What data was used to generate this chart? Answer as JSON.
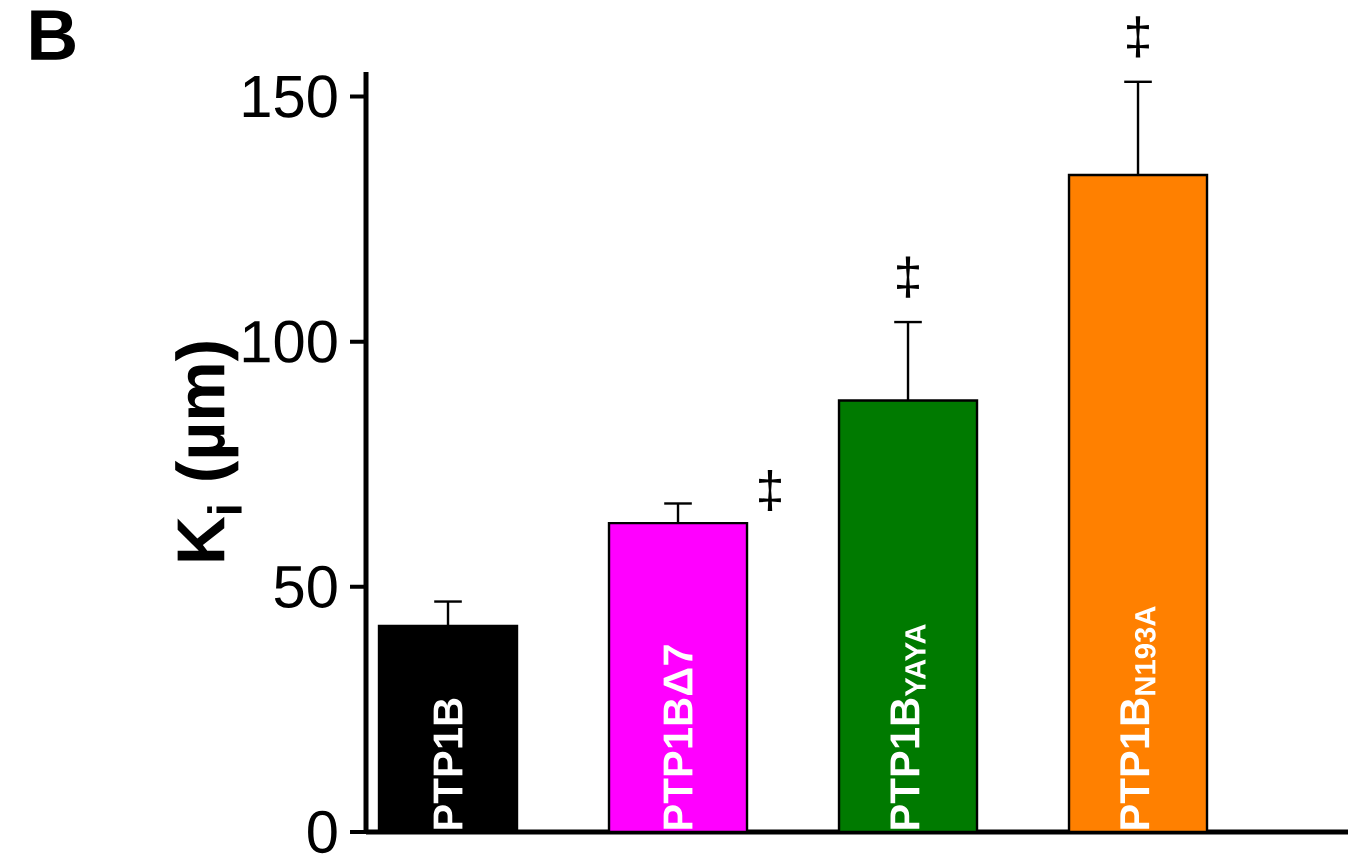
{
  "chart_data": {
    "type": "bar",
    "ylabel": "K$_{i}$ (µm)",
    "categories": [
      "PTP1B",
      "PTP1BΔ7",
      "PTP1B$_{YAYA}$",
      "PTP1B$_{N193A}$"
    ],
    "values": [
      42,
      63,
      88,
      134
    ],
    "errors": [
      [
        42,
        47
      ],
      [
        63,
        67
      ],
      [
        88,
        104
      ],
      [
        134,
        153
      ]
    ],
    "colors": [
      "#000000",
      "#ff00ff",
      "#007a00",
      "#ff8000"
    ],
    "ylim": [
      0,
      155
    ],
    "yticks": [
      0,
      50,
      100,
      150
    ],
    "annotations": [
      "B",
      "‡",
      "‡",
      "‡"
    ]
  }
}
